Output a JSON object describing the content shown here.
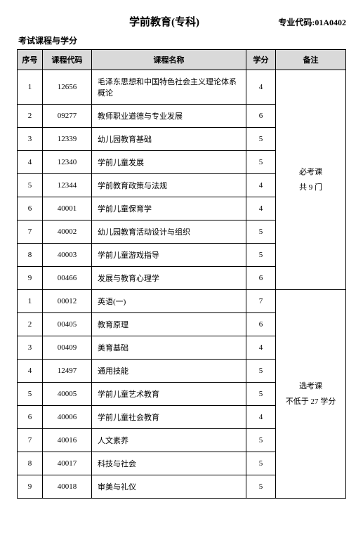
{
  "header": {
    "title": "学前教育(专科)",
    "code_label": "专业代码:",
    "code_value": "01A0402",
    "subtitle": "考试课程与学分"
  },
  "columns": {
    "idx": "序号",
    "code": "课程代码",
    "name": "课程名称",
    "credit": "学分",
    "note": "备注"
  },
  "groups": [
    {
      "note_line1": "必考课",
      "note_line2": "共 9 门",
      "rows": [
        {
          "idx": "1",
          "code": "12656",
          "name": "毛泽东思想和中国特色社会主义理论体系概论",
          "credit": "4"
        },
        {
          "idx": "2",
          "code": "09277",
          "name": "教师职业道德与专业发展",
          "credit": "6"
        },
        {
          "idx": "3",
          "code": "12339",
          "name": "幼儿园教育基础",
          "credit": "5"
        },
        {
          "idx": "4",
          "code": "12340",
          "name": "学前儿童发展",
          "credit": "5"
        },
        {
          "idx": "5",
          "code": "12344",
          "name": "学前教育政策与法规",
          "credit": "4"
        },
        {
          "idx": "6",
          "code": "40001",
          "name": "学前儿童保育学",
          "credit": "4"
        },
        {
          "idx": "7",
          "code": "40002",
          "name": "幼儿园教育活动设计与组织",
          "credit": "5"
        },
        {
          "idx": "8",
          "code": "40003",
          "name": "学前儿童游戏指导",
          "credit": "5"
        },
        {
          "idx": "9",
          "code": "00466",
          "name": "发展与教育心理学",
          "credit": "6"
        }
      ]
    },
    {
      "note_line1": "选考课",
      "note_line2": "不低于 27 学分",
      "rows": [
        {
          "idx": "1",
          "code": "00012",
          "name": "英语(一)",
          "credit": "7"
        },
        {
          "idx": "2",
          "code": "00405",
          "name": "教育原理",
          "credit": "6"
        },
        {
          "idx": "3",
          "code": "00409",
          "name": "美育基础",
          "credit": "4"
        },
        {
          "idx": "4",
          "code": "12497",
          "name": "通用技能",
          "credit": "5"
        },
        {
          "idx": "5",
          "code": "40005",
          "name": "学前儿童艺术教育",
          "credit": "5"
        },
        {
          "idx": "6",
          "code": "40006",
          "name": "学前儿童社会教育",
          "credit": "4"
        },
        {
          "idx": "7",
          "code": "40016",
          "name": "人文素养",
          "credit": "5"
        },
        {
          "idx": "8",
          "code": "40017",
          "name": "科技与社会",
          "credit": "5"
        },
        {
          "idx": "9",
          "code": "40018",
          "name": "审美与礼仪",
          "credit": "5"
        }
      ]
    }
  ]
}
